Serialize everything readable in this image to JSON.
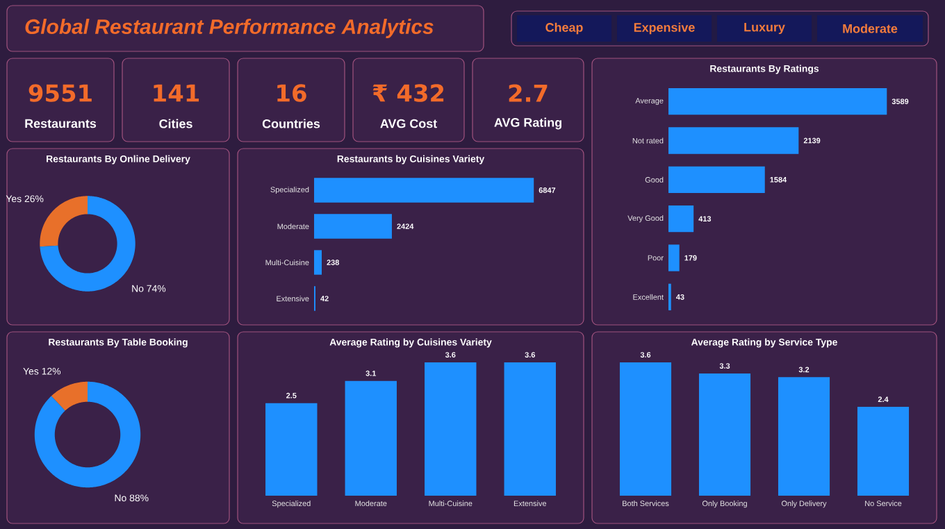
{
  "chart_data": [
    {
      "type": "other",
      "title": "Global Restaurant Performance Analytics",
      "annotations": [
        "Cheap",
        "Expensive",
        "Luxury",
        "Moderate",
        "9551",
        "Restaurants",
        "141",
        "Cities",
        "16",
        "Countries",
        "₹ 432",
        "AVG Cost",
        "2.7",
        "AVG Rating"
      ]
    },
    {
      "type": "bar",
      "title": "Restaurants By Ratings",
      "orientation": "horizontal",
      "categories": [
        "Average",
        "Not rated",
        "Good",
        "Very Good",
        "Poor",
        "Excellent"
      ],
      "values": [
        3589,
        2139,
        1584,
        413,
        179,
        43
      ],
      "color": "#1e90ff",
      "data_labels": true
    },
    {
      "type": "donut",
      "title": "Restaurants By Online Delivery",
      "categories": [
        "Yes",
        "No"
      ],
      "values": [
        26,
        74
      ],
      "colors": [
        "#e8702a",
        "#1e90ff"
      ],
      "value_labels": [
        "26%",
        "74%"
      ]
    },
    {
      "type": "bar",
      "title": "Restaurants by Cuisines Variety",
      "orientation": "horizontal",
      "categories": [
        "Specialized",
        "Moderate",
        "Multi-Cuisine",
        "Extensive"
      ],
      "values": [
        6847,
        2424,
        238,
        42
      ],
      "color": "#1e90ff",
      "data_labels": true
    },
    {
      "type": "donut",
      "title": "Restaurants By Table Booking",
      "categories": [
        "Yes",
        "No"
      ],
      "values": [
        12,
        88
      ],
      "colors": [
        "#e8702a",
        "#1e90ff"
      ],
      "value_labels": [
        "12%",
        "88%"
      ]
    },
    {
      "type": "bar",
      "title": "Average Rating by Cuisines Variety",
      "categories": [
        "Specialized",
        "Moderate",
        "Multi-Cuisine",
        "Extensive"
      ],
      "values": [
        2.5,
        3.1,
        3.6,
        3.6
      ],
      "color": "#1e90ff",
      "data_labels": true
    },
    {
      "type": "bar",
      "title": "Average Rating by Service Type",
      "categories": [
        "Both Services",
        "Only Booking",
        "Only Delivery",
        "No Service"
      ],
      "values": [
        3.6,
        3.3,
        3.2,
        2.4
      ],
      "color": "#1e90ff",
      "data_labels": true
    }
  ]
}
